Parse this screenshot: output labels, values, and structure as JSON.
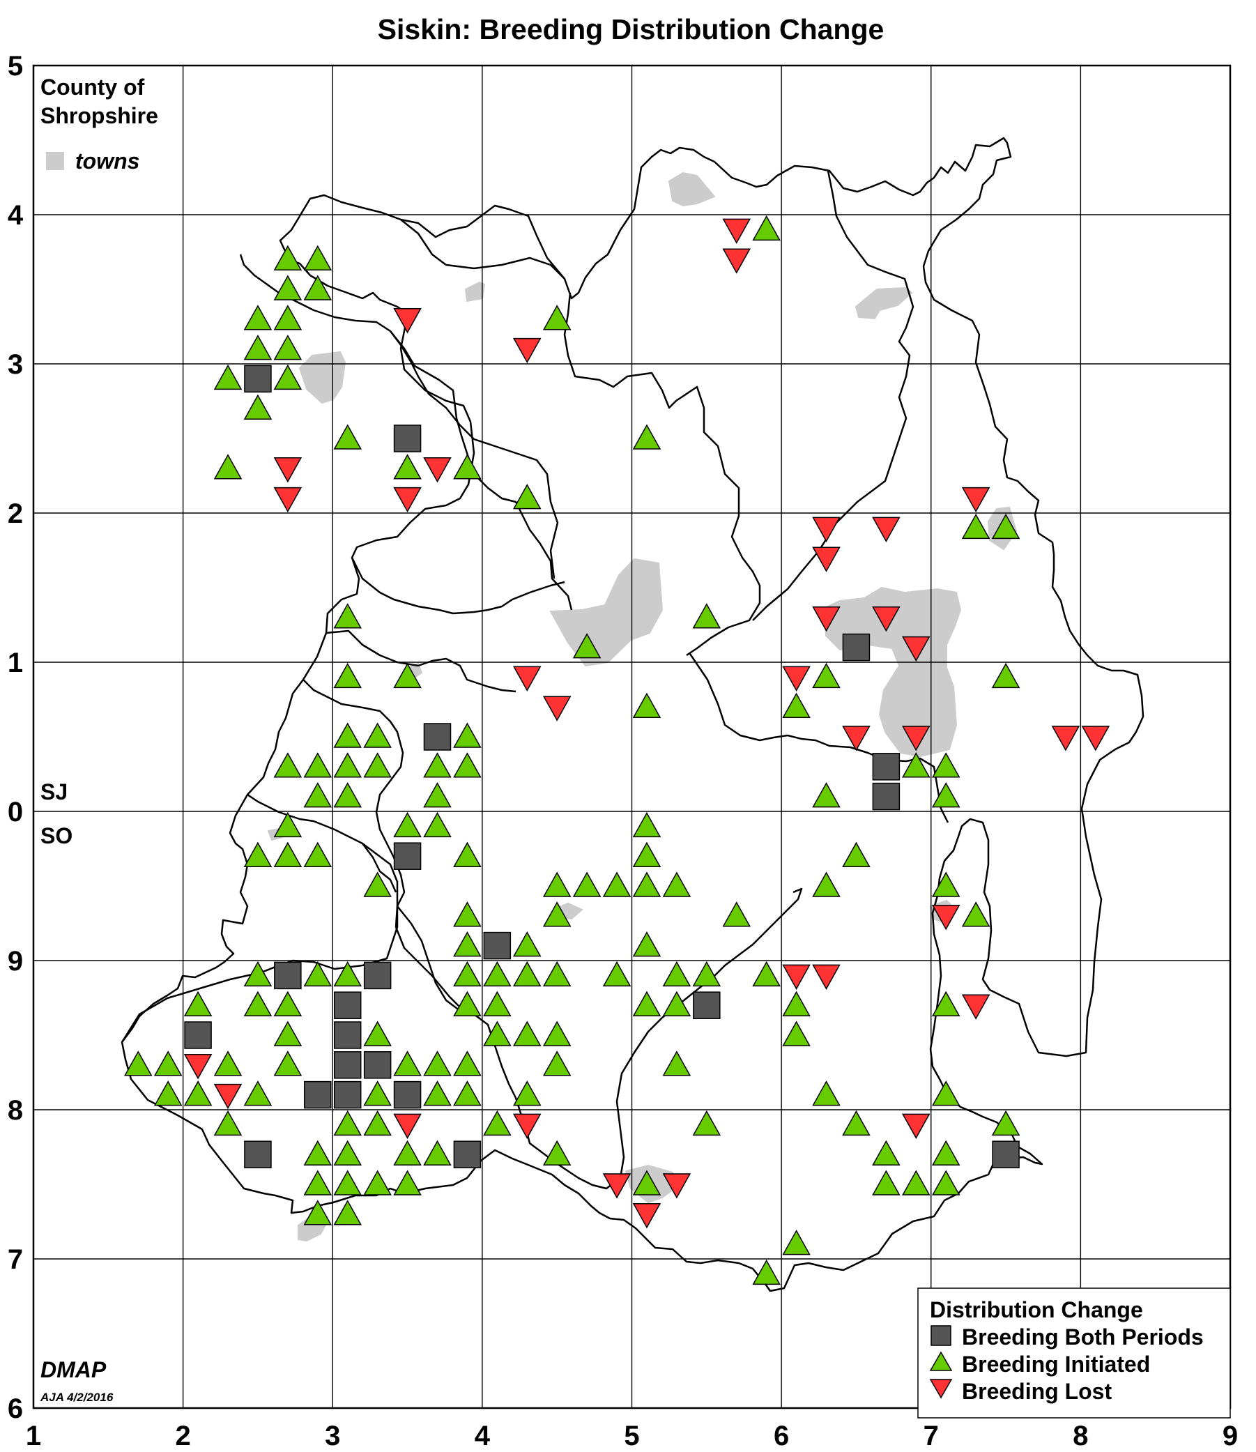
{
  "title": "Siskin: Breeding Distribution Change",
  "county": {
    "line1": "County of",
    "line2": "Shropshire"
  },
  "towns_key_label": "towns",
  "grid_zone_north": "SJ",
  "grid_zone_south": "SO",
  "x_ticks": [
    "1",
    "2",
    "3",
    "4",
    "5",
    "6",
    "7",
    "8",
    "9"
  ],
  "y_ticks": [
    "5",
    "4",
    "3",
    "2",
    "1",
    "0",
    "9",
    "8",
    "7",
    "6"
  ],
  "credit": {
    "name": "DMAP",
    "date": "AJA 4/2/2016"
  },
  "legend": {
    "title": "Distribution Change",
    "items": [
      {
        "label": "Breeding Both Periods",
        "symbol": "square",
        "color": "#555555"
      },
      {
        "label": "Breeding Initiated",
        "symbol": "triangle-up",
        "color": "#66cc00"
      },
      {
        "label": "Breeding Lost",
        "symbol": "triangle-down",
        "color": "#ff3333"
      }
    ]
  },
  "colors": {
    "both": "#555555",
    "initiated": "#66cc00",
    "lost": "#ff3333",
    "town": "#cccccc",
    "grid": "#000000"
  },
  "map_data": {
    "x_range": [
      1,
      9
    ],
    "y_range": [
      -4,
      5
    ],
    "both_periods": [
      [
        2.5,
        2.9
      ],
      [
        3.5,
        2.5
      ],
      [
        3.7,
        0.5
      ],
      [
        3.5,
        -0.3
      ],
      [
        6.5,
        1.1
      ],
      [
        6.7,
        0.3
      ],
      [
        6.7,
        0.1
      ],
      [
        4.1,
        -0.9
      ],
      [
        2.7,
        -1.1
      ],
      [
        3.3,
        -1.1
      ],
      [
        3.1,
        -1.3
      ],
      [
        5.5,
        -1.3
      ],
      [
        2.1,
        -1.5
      ],
      [
        3.1,
        -1.5
      ],
      [
        3.1,
        -1.7
      ],
      [
        3.3,
        -1.7
      ],
      [
        2.9,
        -1.9
      ],
      [
        3.1,
        -1.9
      ],
      [
        3.5,
        -1.9
      ],
      [
        2.5,
        -2.3
      ],
      [
        3.9,
        -2.3
      ],
      [
        7.5,
        -2.3
      ]
    ],
    "initiated": [
      [
        5.9,
        3.9
      ],
      [
        2.7,
        3.7
      ],
      [
        2.9,
        3.7
      ],
      [
        2.7,
        3.5
      ],
      [
        2.9,
        3.5
      ],
      [
        2.5,
        3.3
      ],
      [
        2.7,
        3.3
      ],
      [
        4.5,
        3.3
      ],
      [
        2.5,
        3.1
      ],
      [
        2.7,
        3.1
      ],
      [
        2.3,
        2.9
      ],
      [
        2.7,
        2.9
      ],
      [
        2.5,
        2.7
      ],
      [
        3.1,
        2.5
      ],
      [
        5.1,
        2.5
      ],
      [
        2.3,
        2.3
      ],
      [
        3.5,
        2.3
      ],
      [
        3.9,
        2.3
      ],
      [
        4.3,
        2.1
      ],
      [
        7.3,
        1.9
      ],
      [
        7.5,
        1.9
      ],
      [
        3.1,
        1.3
      ],
      [
        5.5,
        1.3
      ],
      [
        4.7,
        1.1
      ],
      [
        3.1,
        0.9
      ],
      [
        3.5,
        0.9
      ],
      [
        6.3,
        0.9
      ],
      [
        7.5,
        0.9
      ],
      [
        5.1,
        0.7
      ],
      [
        6.1,
        0.7
      ],
      [
        3.1,
        0.5
      ],
      [
        3.3,
        0.5
      ],
      [
        3.9,
        0.5
      ],
      [
        2.7,
        0.3
      ],
      [
        2.9,
        0.3
      ],
      [
        3.1,
        0.3
      ],
      [
        3.3,
        0.3
      ],
      [
        3.7,
        0.3
      ],
      [
        3.9,
        0.3
      ],
      [
        6.9,
        0.3
      ],
      [
        7.1,
        0.3
      ],
      [
        2.9,
        0.1
      ],
      [
        3.1,
        0.1
      ],
      [
        3.7,
        0.1
      ],
      [
        6.3,
        0.1
      ],
      [
        7.1,
        0.1
      ],
      [
        2.7,
        -0.1
      ],
      [
        3.5,
        -0.1
      ],
      [
        3.7,
        -0.1
      ],
      [
        5.1,
        -0.1
      ],
      [
        2.5,
        -0.3
      ],
      [
        2.7,
        -0.3
      ],
      [
        2.9,
        -0.3
      ],
      [
        3.9,
        -0.3
      ],
      [
        5.1,
        -0.3
      ],
      [
        6.5,
        -0.3
      ],
      [
        3.3,
        -0.5
      ],
      [
        4.5,
        -0.5
      ],
      [
        4.7,
        -0.5
      ],
      [
        4.9,
        -0.5
      ],
      [
        5.1,
        -0.5
      ],
      [
        5.3,
        -0.5
      ],
      [
        6.3,
        -0.5
      ],
      [
        7.1,
        -0.5
      ],
      [
        3.9,
        -0.7
      ],
      [
        4.5,
        -0.7
      ],
      [
        5.7,
        -0.7
      ],
      [
        7.3,
        -0.7
      ],
      [
        3.9,
        -0.9
      ],
      [
        4.3,
        -0.9
      ],
      [
        5.1,
        -0.9
      ],
      [
        2.5,
        -1.1
      ],
      [
        2.9,
        -1.1
      ],
      [
        3.1,
        -1.1
      ],
      [
        3.9,
        -1.1
      ],
      [
        4.1,
        -1.1
      ],
      [
        4.3,
        -1.1
      ],
      [
        4.5,
        -1.1
      ],
      [
        4.9,
        -1.1
      ],
      [
        5.3,
        -1.1
      ],
      [
        5.5,
        -1.1
      ],
      [
        5.9,
        -1.1
      ],
      [
        2.1,
        -1.3
      ],
      [
        2.5,
        -1.3
      ],
      [
        2.7,
        -1.3
      ],
      [
        3.9,
        -1.3
      ],
      [
        4.1,
        -1.3
      ],
      [
        5.1,
        -1.3
      ],
      [
        5.3,
        -1.3
      ],
      [
        6.1,
        -1.3
      ],
      [
        7.1,
        -1.3
      ],
      [
        2.7,
        -1.5
      ],
      [
        3.3,
        -1.5
      ],
      [
        4.1,
        -1.5
      ],
      [
        4.3,
        -1.5
      ],
      [
        4.5,
        -1.5
      ],
      [
        6.1,
        -1.5
      ],
      [
        1.7,
        -1.7
      ],
      [
        1.9,
        -1.7
      ],
      [
        2.3,
        -1.7
      ],
      [
        2.7,
        -1.7
      ],
      [
        3.5,
        -1.7
      ],
      [
        3.7,
        -1.7
      ],
      [
        3.9,
        -1.7
      ],
      [
        4.5,
        -1.7
      ],
      [
        5.3,
        -1.7
      ],
      [
        1.9,
        -1.9
      ],
      [
        2.1,
        -1.9
      ],
      [
        2.5,
        -1.9
      ],
      [
        3.3,
        -1.9
      ],
      [
        3.7,
        -1.9
      ],
      [
        3.9,
        -1.9
      ],
      [
        4.3,
        -1.9
      ],
      [
        6.3,
        -1.9
      ],
      [
        7.1,
        -1.9
      ],
      [
        2.3,
        -2.1
      ],
      [
        3.1,
        -2.1
      ],
      [
        3.3,
        -2.1
      ],
      [
        4.1,
        -2.1
      ],
      [
        5.5,
        -2.1
      ],
      [
        6.5,
        -2.1
      ],
      [
        7.5,
        -2.1
      ],
      [
        2.9,
        -2.3
      ],
      [
        3.1,
        -2.3
      ],
      [
        3.5,
        -2.3
      ],
      [
        3.7,
        -2.3
      ],
      [
        4.5,
        -2.3
      ],
      [
        6.7,
        -2.3
      ],
      [
        7.1,
        -2.3
      ],
      [
        2.9,
        -2.5
      ],
      [
        3.1,
        -2.5
      ],
      [
        3.3,
        -2.5
      ],
      [
        3.5,
        -2.5
      ],
      [
        5.1,
        -2.5
      ],
      [
        6.7,
        -2.5
      ],
      [
        6.9,
        -2.5
      ],
      [
        7.1,
        -2.5
      ],
      [
        2.9,
        -2.7
      ],
      [
        3.1,
        -2.7
      ],
      [
        6.1,
        -2.9
      ],
      [
        5.9,
        -3.1
      ]
    ],
    "lost": [
      [
        5.7,
        3.9
      ],
      [
        5.7,
        3.7
      ],
      [
        3.5,
        3.3
      ],
      [
        4.3,
        3.1
      ],
      [
        2.7,
        2.3
      ],
      [
        3.7,
        2.3
      ],
      [
        2.7,
        2.1
      ],
      [
        3.5,
        2.1
      ],
      [
        7.3,
        2.1
      ],
      [
        6.3,
        1.9
      ],
      [
        6.7,
        1.9
      ],
      [
        6.3,
        1.7
      ],
      [
        6.3,
        1.3
      ],
      [
        6.7,
        1.3
      ],
      [
        6.9,
        1.1
      ],
      [
        4.3,
        0.9
      ],
      [
        6.1,
        0.9
      ],
      [
        4.5,
        0.7
      ],
      [
        6.5,
        0.5
      ],
      [
        6.9,
        0.5
      ],
      [
        7.9,
        0.5
      ],
      [
        8.1,
        0.5
      ],
      [
        7.1,
        -0.7
      ],
      [
        6.1,
        -1.1
      ],
      [
        6.3,
        -1.1
      ],
      [
        7.3,
        -1.3
      ],
      [
        2.1,
        -1.7
      ],
      [
        2.3,
        -1.9
      ],
      [
        3.5,
        -2.1
      ],
      [
        4.3,
        -2.1
      ],
      [
        6.9,
        -2.1
      ],
      [
        4.9,
        -2.5
      ],
      [
        5.3,
        -2.5
      ],
      [
        5.1,
        -2.7
      ]
    ]
  }
}
